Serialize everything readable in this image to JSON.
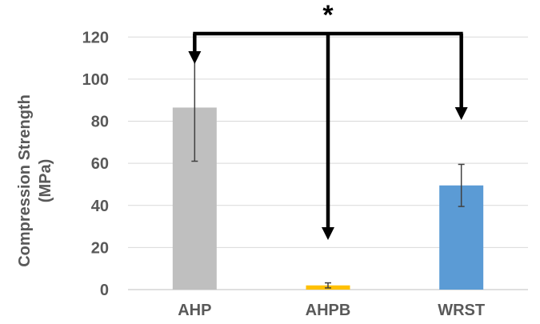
{
  "chart_data": {
    "type": "bar",
    "title": "",
    "xlabel": "",
    "ylabel_lines": [
      "Compression Strength",
      "(MPa)"
    ],
    "ylim": [
      0,
      130
    ],
    "yticks": [
      0,
      20,
      40,
      60,
      80,
      100,
      120
    ],
    "grid": true,
    "categories": [
      "AHP",
      "AHPB",
      "WRST"
    ],
    "values": [
      86.5,
      2,
      49.5
    ],
    "error": [
      25.5,
      1.2,
      10
    ],
    "colors": [
      "#bfbfbf",
      "#ffc000",
      "#5b9bd5"
    ],
    "annotation": "*",
    "comparison_from": "AHP",
    "comparison_to": [
      "AHP",
      "AHPB",
      "WRST"
    ]
  }
}
